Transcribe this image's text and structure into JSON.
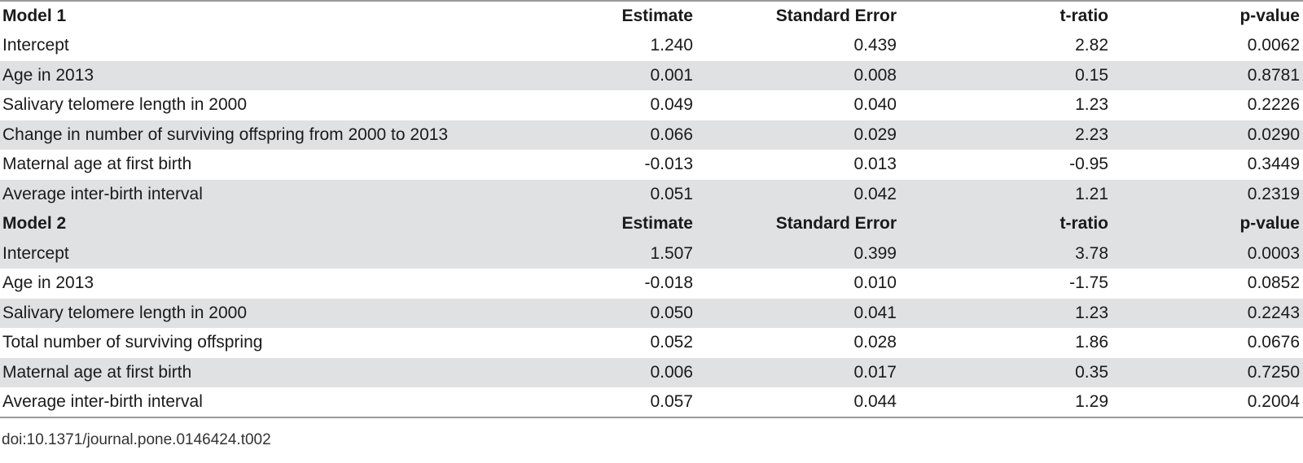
{
  "models": [
    {
      "header": {
        "label": "Model 1",
        "estimate": "Estimate",
        "std_error": "Standard Error",
        "t_ratio": "t-ratio",
        "p_value": "p-value"
      },
      "rows": [
        {
          "label": "Intercept",
          "estimate": "1.240",
          "std_error": "0.439",
          "t_ratio": "2.82",
          "p_value": "0.0062"
        },
        {
          "label": "Age in 2013",
          "estimate": "0.001",
          "std_error": "0.008",
          "t_ratio": "0.15",
          "p_value": "0.8781"
        },
        {
          "label": "Salivary telomere length in 2000",
          "estimate": "0.049",
          "std_error": "0.040",
          "t_ratio": "1.23",
          "p_value": "0.2226"
        },
        {
          "label": "Change in number of surviving offspring from 2000 to 2013",
          "estimate": "0.066",
          "std_error": "0.029",
          "t_ratio": "2.23",
          "p_value": "0.0290"
        },
        {
          "label": "Maternal age at first birth",
          "estimate": "-0.013",
          "std_error": "0.013",
          "t_ratio": "-0.95",
          "p_value": "0.3449"
        },
        {
          "label": "Average inter-birth interval",
          "estimate": "0.051",
          "std_error": "0.042",
          "t_ratio": "1.21",
          "p_value": "0.2319"
        }
      ]
    },
    {
      "header": {
        "label": "Model 2",
        "estimate": "Estimate",
        "std_error": "Standard Error",
        "t_ratio": "t-ratio",
        "p_value": "p-value"
      },
      "rows": [
        {
          "label": "Intercept",
          "estimate": "1.507",
          "std_error": "0.399",
          "t_ratio": "3.78",
          "p_value": "0.0003"
        },
        {
          "label": "Age in 2013",
          "estimate": "-0.018",
          "std_error": "0.010",
          "t_ratio": "-1.75",
          "p_value": "0.0852"
        },
        {
          "label": "Salivary telomere length in 2000",
          "estimate": "0.050",
          "std_error": "0.041",
          "t_ratio": "1.23",
          "p_value": "0.2243"
        },
        {
          "label": "Total number of surviving offspring",
          "estimate": "0.052",
          "std_error": "0.028",
          "t_ratio": "1.86",
          "p_value": "0.0676"
        },
        {
          "label": "Maternal age at first birth",
          "estimate": "0.006",
          "std_error": "0.017",
          "t_ratio": "0.35",
          "p_value": "0.7250"
        },
        {
          "label": "Average inter-birth interval",
          "estimate": "0.057",
          "std_error": "0.044",
          "t_ratio": "1.29",
          "p_value": "0.2004"
        }
      ]
    }
  ],
  "doi": "doi:10.1371/journal.pone.0146424.t002",
  "colors": {
    "shade": "#e0e1e3",
    "rule": "#9a9a9a",
    "text": "#1a1a1a"
  }
}
